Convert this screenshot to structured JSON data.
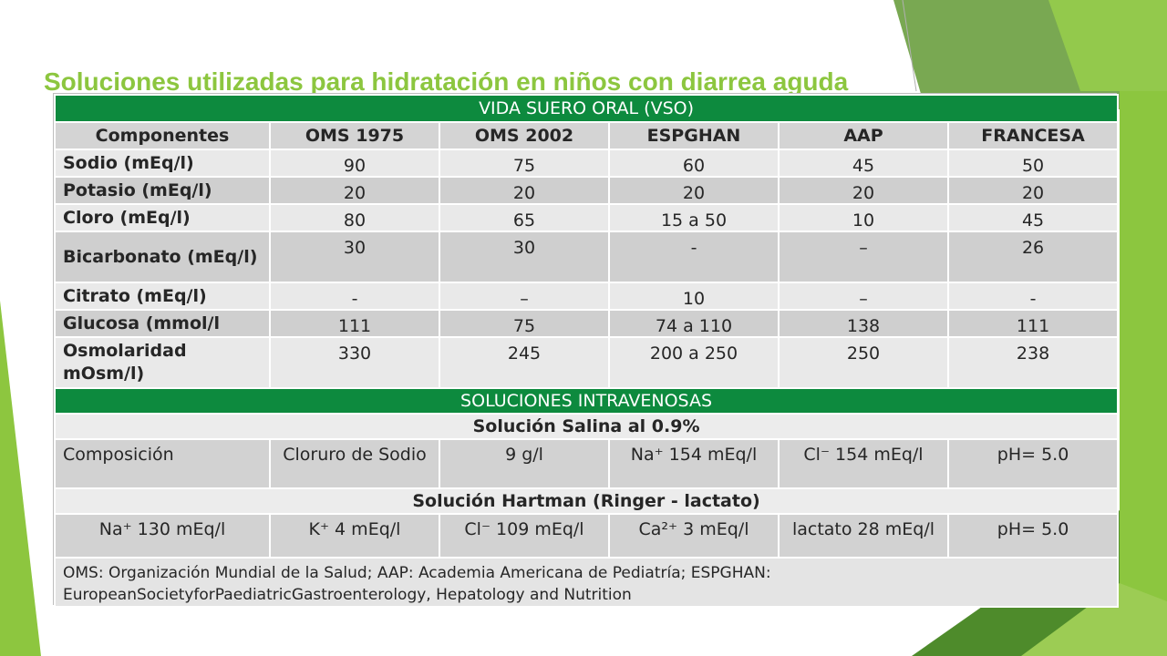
{
  "slide": {
    "title": "Soluciones utilizadas para hidratación en niños con diarrea aguda"
  },
  "table": {
    "vso_band": "VIDA SUERO ORAL (VSO)",
    "headers": [
      "Componentes",
      "OMS 1975",
      "OMS 2002",
      "ESPGHAN",
      "AAP",
      "FRANCESA"
    ],
    "rows": [
      {
        "label": "Sodio (mEq/l)",
        "values": [
          "90",
          "75",
          "60",
          "45",
          "50"
        ]
      },
      {
        "label": "Potasio (mEq/l)",
        "values": [
          "20",
          "20",
          "20",
          "20",
          "20"
        ]
      },
      {
        "label": "Cloro (mEq/l)",
        "values": [
          "80",
          "65",
          "15 a 50",
          "10",
          "45"
        ]
      },
      {
        "label": "Bicarbonato (mEq/l)",
        "values": [
          "30",
          "30",
          "-",
          "–",
          "26"
        ]
      },
      {
        "label": "Citrato (mEq/l)",
        "values": [
          "-",
          "–",
          "10",
          "–",
          "-"
        ]
      },
      {
        "label": "Glucosa (mmol/l",
        "values": [
          "111",
          "75",
          "74 a 110",
          "138",
          "111"
        ]
      },
      {
        "label": "Osmolaridad mOsm/l)",
        "values": [
          "330",
          "245",
          "200 a 250",
          "250",
          "238"
        ]
      }
    ],
    "iv_band": "SOLUCIONES INTRAVENOSAS",
    "saline": {
      "title": "Solución Salina al 0.9%",
      "cells": [
        "Composición",
        "Cloruro de Sodio",
        "9 g/l",
        "Na⁺ 154 mEq/l",
        "Cl⁻ 154 mEq/l",
        "pH= 5.0"
      ]
    },
    "hartman": {
      "title": "Solución Hartman (Ringer - lactato)",
      "cells": [
        "Na⁺ 130 mEq/l",
        "K⁺ 4 mEq/l",
        "Cl⁻ 109 mEq/l",
        "Ca²⁺ 3 mEq/l",
        "lactato 28 mEq/l",
        "pH= 5.0"
      ]
    },
    "footnote": "OMS: Organización Mundial de la Salud; AAP: Academia Americana de Pediatría; ESPGHAN: EuropeanSocietyforPaediatricGastroenterology, Hepatology and Nutrition"
  },
  "colors": {
    "title": "#8cc63f",
    "band": "#0d8a3e",
    "deco_light": "#8dc63f",
    "deco_dark": "#5c9a36"
  }
}
